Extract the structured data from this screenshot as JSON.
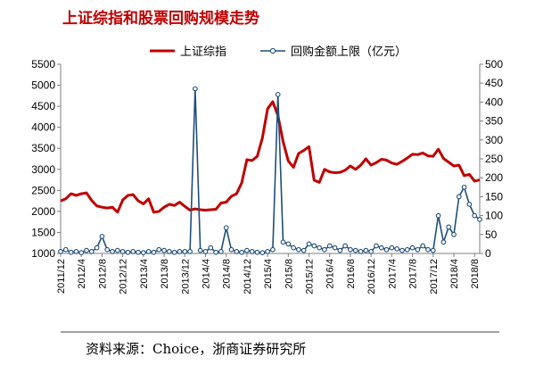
{
  "title": "上证综指和股票回购规模走势",
  "source": "资料来源：Choice，浙商证券研究所",
  "colors": {
    "index_line": "#C00000",
    "buyback_line": "#1F4E79",
    "marker_fill": "#ffffff",
    "axis": "#7f7f7f"
  },
  "chart_data": {
    "type": "line",
    "xlabel": "",
    "ylabel_left": "",
    "ylabel_right": "",
    "x_tick_labels": [
      "2011/12",
      "2012/4",
      "2012/8",
      "2012/12",
      "2013/4",
      "2013/8",
      "2013/12",
      "2014/4",
      "2014/8",
      "2014/12",
      "2015/4",
      "2015/8",
      "2015/12",
      "2016/4",
      "2016/8",
      "2016/12",
      "2017/4",
      "2017/8",
      "2017/12",
      "2018/4",
      "2018/8"
    ],
    "x_range": [
      "2011/12",
      "2018/9"
    ],
    "y_left": {
      "min": 1000,
      "max": 5500,
      "ticks": [
        1000,
        1500,
        2000,
        2500,
        3000,
        3500,
        4000,
        4500,
        5000,
        5500
      ]
    },
    "y_right": {
      "min": 0,
      "max": 500,
      "ticks": [
        0,
        50,
        100,
        150,
        200,
        250,
        300,
        350,
        400,
        450,
        500
      ]
    },
    "grid": false,
    "legend_position": "top",
    "series": [
      {
        "name": "上证综指",
        "axis": "left",
        "points": [
          [
            "2011/12",
            2250
          ],
          [
            "2012/1",
            2300
          ],
          [
            "2012/2",
            2420
          ],
          [
            "2012/3",
            2380
          ],
          [
            "2012/4",
            2420
          ],
          [
            "2012/5",
            2440
          ],
          [
            "2012/6",
            2260
          ],
          [
            "2012/7",
            2130
          ],
          [
            "2012/8",
            2100
          ],
          [
            "2012/9",
            2080
          ],
          [
            "2012/10",
            2100
          ],
          [
            "2012/11",
            1980
          ],
          [
            "2012/12",
            2270
          ],
          [
            "2013/1",
            2380
          ],
          [
            "2013/2",
            2400
          ],
          [
            "2013/3",
            2250
          ],
          [
            "2013/4",
            2180
          ],
          [
            "2013/5",
            2300
          ],
          [
            "2013/6",
            1980
          ],
          [
            "2013/7",
            2000
          ],
          [
            "2013/8",
            2100
          ],
          [
            "2013/9",
            2170
          ],
          [
            "2013/10",
            2140
          ],
          [
            "2013/11",
            2220
          ],
          [
            "2013/12",
            2120
          ],
          [
            "2014/1",
            2030
          ],
          [
            "2014/2",
            2060
          ],
          [
            "2014/3",
            2040
          ],
          [
            "2014/4",
            2030
          ],
          [
            "2014/5",
            2040
          ],
          [
            "2014/6",
            2050
          ],
          [
            "2014/7",
            2200
          ],
          [
            "2014/8",
            2220
          ],
          [
            "2014/9",
            2360
          ],
          [
            "2014/10",
            2420
          ],
          [
            "2014/11",
            2680
          ],
          [
            "2014/12",
            3230
          ],
          [
            "2015/1",
            3210
          ],
          [
            "2015/2",
            3310
          ],
          [
            "2015/3",
            3750
          ],
          [
            "2015/4",
            4440
          ],
          [
            "2015/5",
            4610
          ],
          [
            "2015/6",
            4280
          ],
          [
            "2015/7",
            3660
          ],
          [
            "2015/8",
            3200
          ],
          [
            "2015/9",
            3050
          ],
          [
            "2015/10",
            3380
          ],
          [
            "2015/11",
            3450
          ],
          [
            "2015/12",
            3540
          ],
          [
            "2016/1",
            2740
          ],
          [
            "2016/2",
            2690
          ],
          [
            "2016/3",
            3000
          ],
          [
            "2016/4",
            2940
          ],
          [
            "2016/5",
            2920
          ],
          [
            "2016/6",
            2930
          ],
          [
            "2016/7",
            2980
          ],
          [
            "2016/8",
            3080
          ],
          [
            "2016/9",
            3000
          ],
          [
            "2016/10",
            3100
          ],
          [
            "2016/11",
            3250
          ],
          [
            "2016/12",
            3100
          ],
          [
            "2017/1",
            3160
          ],
          [
            "2017/2",
            3240
          ],
          [
            "2017/3",
            3220
          ],
          [
            "2017/4",
            3150
          ],
          [
            "2017/5",
            3120
          ],
          [
            "2017/6",
            3190
          ],
          [
            "2017/7",
            3270
          ],
          [
            "2017/8",
            3360
          ],
          [
            "2017/9",
            3350
          ],
          [
            "2017/10",
            3390
          ],
          [
            "2017/11",
            3320
          ],
          [
            "2017/12",
            3310
          ],
          [
            "2018/1",
            3480
          ],
          [
            "2018/2",
            3260
          ],
          [
            "2018/3",
            3170
          ],
          [
            "2018/4",
            3080
          ],
          [
            "2018/5",
            3100
          ],
          [
            "2018/6",
            2850
          ],
          [
            "2018/7",
            2880
          ],
          [
            "2018/8",
            2720
          ],
          [
            "2018/9",
            2750
          ]
        ]
      },
      {
        "name": "回购金额上限（亿元）",
        "axis": "right",
        "points": [
          [
            "2011/12",
            5
          ],
          [
            "2012/1",
            10
          ],
          [
            "2012/2",
            3
          ],
          [
            "2012/3",
            5
          ],
          [
            "2012/4",
            2
          ],
          [
            "2012/5",
            8
          ],
          [
            "2012/6",
            5
          ],
          [
            "2012/7",
            15
          ],
          [
            "2012/8",
            45
          ],
          [
            "2012/9",
            10
          ],
          [
            "2012/10",
            5
          ],
          [
            "2012/11",
            8
          ],
          [
            "2012/12",
            5
          ],
          [
            "2013/1",
            3
          ],
          [
            "2013/2",
            5
          ],
          [
            "2013/3",
            3
          ],
          [
            "2013/4",
            2
          ],
          [
            "2013/5",
            5
          ],
          [
            "2013/6",
            3
          ],
          [
            "2013/7",
            10
          ],
          [
            "2013/8",
            8
          ],
          [
            "2013/9",
            5
          ],
          [
            "2013/10",
            3
          ],
          [
            "2013/11",
            5
          ],
          [
            "2013/12",
            5
          ],
          [
            "2014/1",
            5
          ],
          [
            "2014/2",
            435
          ],
          [
            "2014/3",
            8
          ],
          [
            "2014/4",
            5
          ],
          [
            "2014/5",
            15
          ],
          [
            "2014/6",
            3
          ],
          [
            "2014/7",
            5
          ],
          [
            "2014/8",
            68
          ],
          [
            "2014/9",
            10
          ],
          [
            "2014/10",
            5
          ],
          [
            "2014/11",
            3
          ],
          [
            "2014/12",
            8
          ],
          [
            "2015/1",
            5
          ],
          [
            "2015/2",
            3
          ],
          [
            "2015/3",
            2
          ],
          [
            "2015/4",
            5
          ],
          [
            "2015/5",
            10
          ],
          [
            "2015/6",
            420
          ],
          [
            "2015/7",
            30
          ],
          [
            "2015/8",
            25
          ],
          [
            "2015/9",
            15
          ],
          [
            "2015/10",
            10
          ],
          [
            "2015/11",
            8
          ],
          [
            "2015/12",
            25
          ],
          [
            "2016/1",
            20
          ],
          [
            "2016/2",
            15
          ],
          [
            "2016/3",
            10
          ],
          [
            "2016/4",
            20
          ],
          [
            "2016/5",
            15
          ],
          [
            "2016/6",
            8
          ],
          [
            "2016/7",
            20
          ],
          [
            "2016/8",
            10
          ],
          [
            "2016/9",
            8
          ],
          [
            "2016/10",
            5
          ],
          [
            "2016/11",
            8
          ],
          [
            "2016/12",
            5
          ],
          [
            "2017/1",
            20
          ],
          [
            "2017/2",
            15
          ],
          [
            "2017/3",
            10
          ],
          [
            "2017/4",
            15
          ],
          [
            "2017/5",
            12
          ],
          [
            "2017/6",
            8
          ],
          [
            "2017/7",
            10
          ],
          [
            "2017/8",
            15
          ],
          [
            "2017/9",
            10
          ],
          [
            "2017/10",
            20
          ],
          [
            "2017/11",
            10
          ],
          [
            "2017/12",
            8
          ],
          [
            "2018/1",
            100
          ],
          [
            "2018/2",
            30
          ],
          [
            "2018/3",
            70
          ],
          [
            "2018/4",
            50
          ],
          [
            "2018/5",
            150
          ],
          [
            "2018/6",
            175
          ],
          [
            "2018/7",
            130
          ],
          [
            "2018/8",
            100
          ],
          [
            "2018/9",
            90
          ]
        ]
      }
    ]
  }
}
